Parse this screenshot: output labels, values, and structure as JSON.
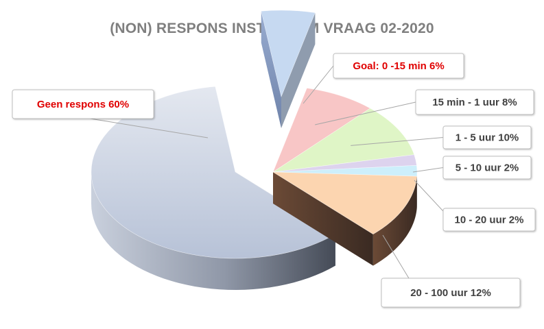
{
  "chart_data": {
    "type": "pie",
    "title": "(NON) RESPONS INSTAGRAM VRAAG 02-2020",
    "slices": [
      {
        "label": "Goal: 0 -15 min",
        "value": 6,
        "value_label": "6%",
        "color": "#c6d9f1",
        "highlight": "#e00000",
        "exploded": true
      },
      {
        "label": "15 min - 1 uur",
        "value": 8,
        "value_label": "8%",
        "color": "#f8c6c6",
        "highlight": ""
      },
      {
        "label": "1 - 5 uur",
        "value": 10,
        "value_label": "10%",
        "color": "#dff5c6",
        "highlight": ""
      },
      {
        "label": "5 - 10 uur",
        "value": 2,
        "value_label": "2%",
        "color": "#ddd3ee",
        "highlight": ""
      },
      {
        "label": "10 - 20 uur",
        "value": 2,
        "value_label": "2%",
        "color": "#cdeffb",
        "highlight": ""
      },
      {
        "label": "20 - 100 uur",
        "value": 12,
        "value_label": "12%",
        "color": "#fcd5b0",
        "highlight": ""
      },
      {
        "label": "Geen respons",
        "value": 60,
        "value_label": "60%",
        "color": "#cfd8e8",
        "highlight": "#e00000",
        "exploded": true
      }
    ],
    "legend": "callouts",
    "style": "3d-exploded"
  }
}
